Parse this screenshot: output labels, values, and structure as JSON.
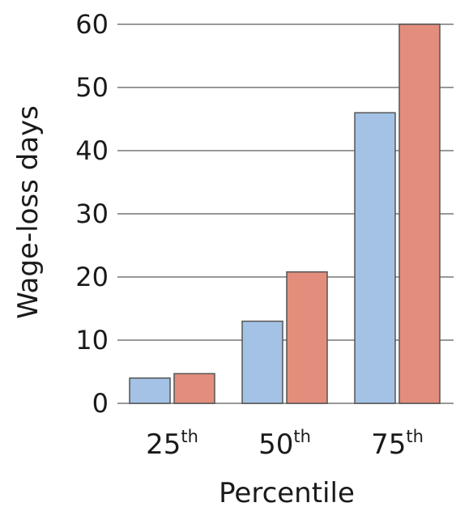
{
  "chart_data": {
    "type": "bar",
    "title": "",
    "xlabel": "Percentile",
    "ylabel": "Wage-loss days",
    "ylim": [
      0,
      60
    ],
    "yticks": [
      "0",
      "10",
      "20",
      "30",
      "40",
      "50",
      "60"
    ],
    "categories": [
      {
        "main": "25",
        "sup": "th"
      },
      {
        "main": "50",
        "sup": "th"
      },
      {
        "main": "75",
        "sup": "th"
      }
    ],
    "series": [
      {
        "values": [
          4,
          13,
          46
        ],
        "color": "#a4c2e6"
      },
      {
        "values": [
          4.7,
          20.8,
          60
        ],
        "color": "#e38e7c"
      }
    ],
    "grid": true,
    "legend": "none",
    "colors": {
      "gridline": "#999999",
      "bar_stroke": "#555555",
      "text": "#1a1a1a"
    }
  }
}
